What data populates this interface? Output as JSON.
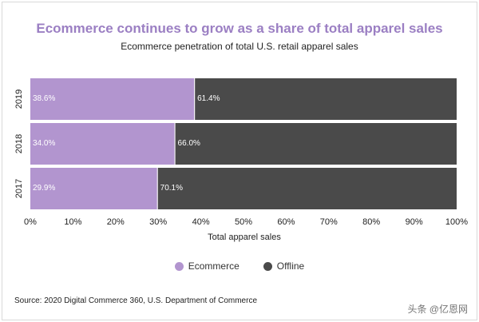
{
  "chart_data": {
    "type": "bar",
    "orientation": "horizontal",
    "stacked": true,
    "title": "Ecommerce continues to grow as a share of total apparel sales",
    "subtitle": "Ecommerce penetration of total U.S. retail apparel sales",
    "categories": [
      "2019",
      "2018",
      "2017"
    ],
    "series": [
      {
        "name": "Ecommerce",
        "values": [
          38.6,
          34.0,
          29.9
        ],
        "labels": [
          "38.6%",
          "34.0%",
          "29.9%"
        ],
        "color": "#b295cf"
      },
      {
        "name": "Offline",
        "values": [
          61.4,
          66.0,
          70.1
        ],
        "labels": [
          "61.4%",
          "66.0%",
          "70.1%"
        ],
        "color": "#4a4a4a"
      }
    ],
    "xlabel": "Total apparel sales",
    "ylabel": "",
    "xlim": [
      0,
      100
    ],
    "xticks": [
      "0%",
      "10%",
      "20%",
      "30%",
      "40%",
      "50%",
      "60%",
      "70%",
      "80%",
      "90%",
      "100%"
    ],
    "legend_position": "bottom-center"
  },
  "source": "Source:  2020 Digital Commerce 360, U.S. Department of Commerce",
  "watermark": "头条 @亿恩网"
}
